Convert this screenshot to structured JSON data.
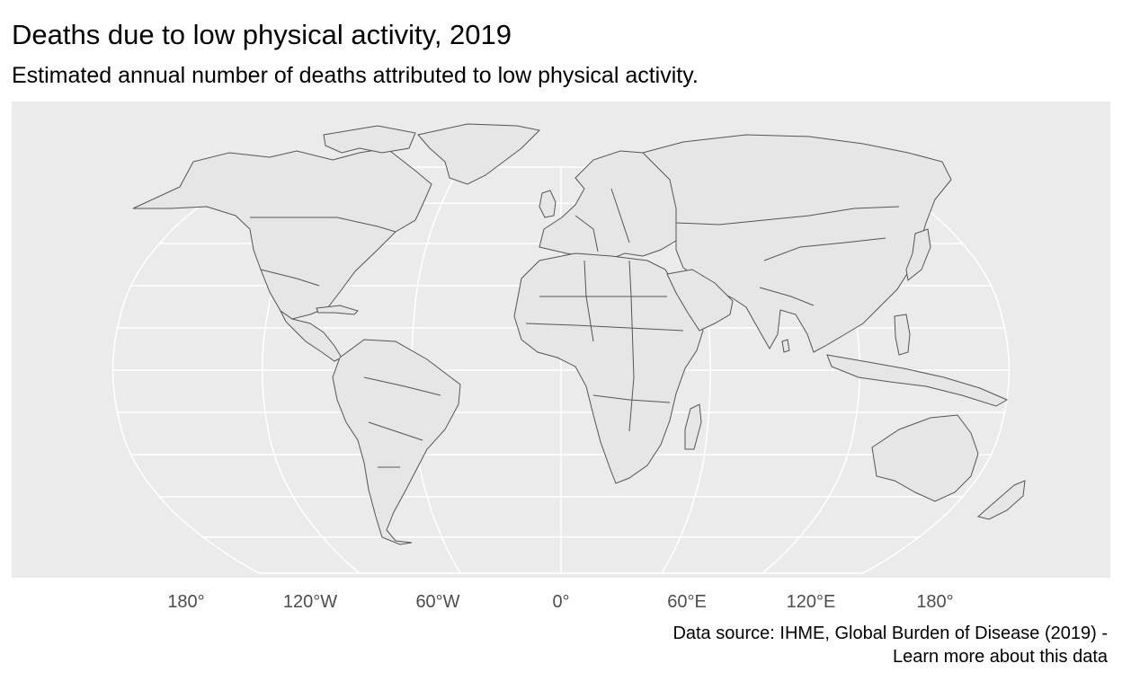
{
  "header": {
    "title": "Deaths due to low physical activity, 2019",
    "subtitle": "Estimated annual number of deaths attributed to low physical activity."
  },
  "map": {
    "projection": "Robinson",
    "panel_color": "#ebebeb",
    "land_color": "#e6e6e6",
    "border_color": "#555555",
    "graticule_color": "#ffffff",
    "graticule_longitudes": [
      -180,
      -120,
      -60,
      0,
      60,
      120,
      180
    ],
    "graticule_latitudes": [
      -75,
      -60,
      -45,
      -30,
      -15,
      0,
      15,
      30,
      45,
      60,
      75
    ],
    "x_axis_labels": [
      {
        "lon": 180,
        "label": "180°"
      },
      {
        "lon": -120,
        "label": "120°W"
      },
      {
        "lon": -60,
        "label": "60°W"
      },
      {
        "lon": 0,
        "label": "0°"
      },
      {
        "lon": 60,
        "label": "60°E"
      },
      {
        "lon": 120,
        "label": "120°E"
      },
      {
        "lon": 180,
        "label": "180°"
      }
    ]
  },
  "caption": {
    "line1": "Data source: IHME, Global Burden of Disease (2019) -",
    "line2": "Learn more about this data"
  }
}
